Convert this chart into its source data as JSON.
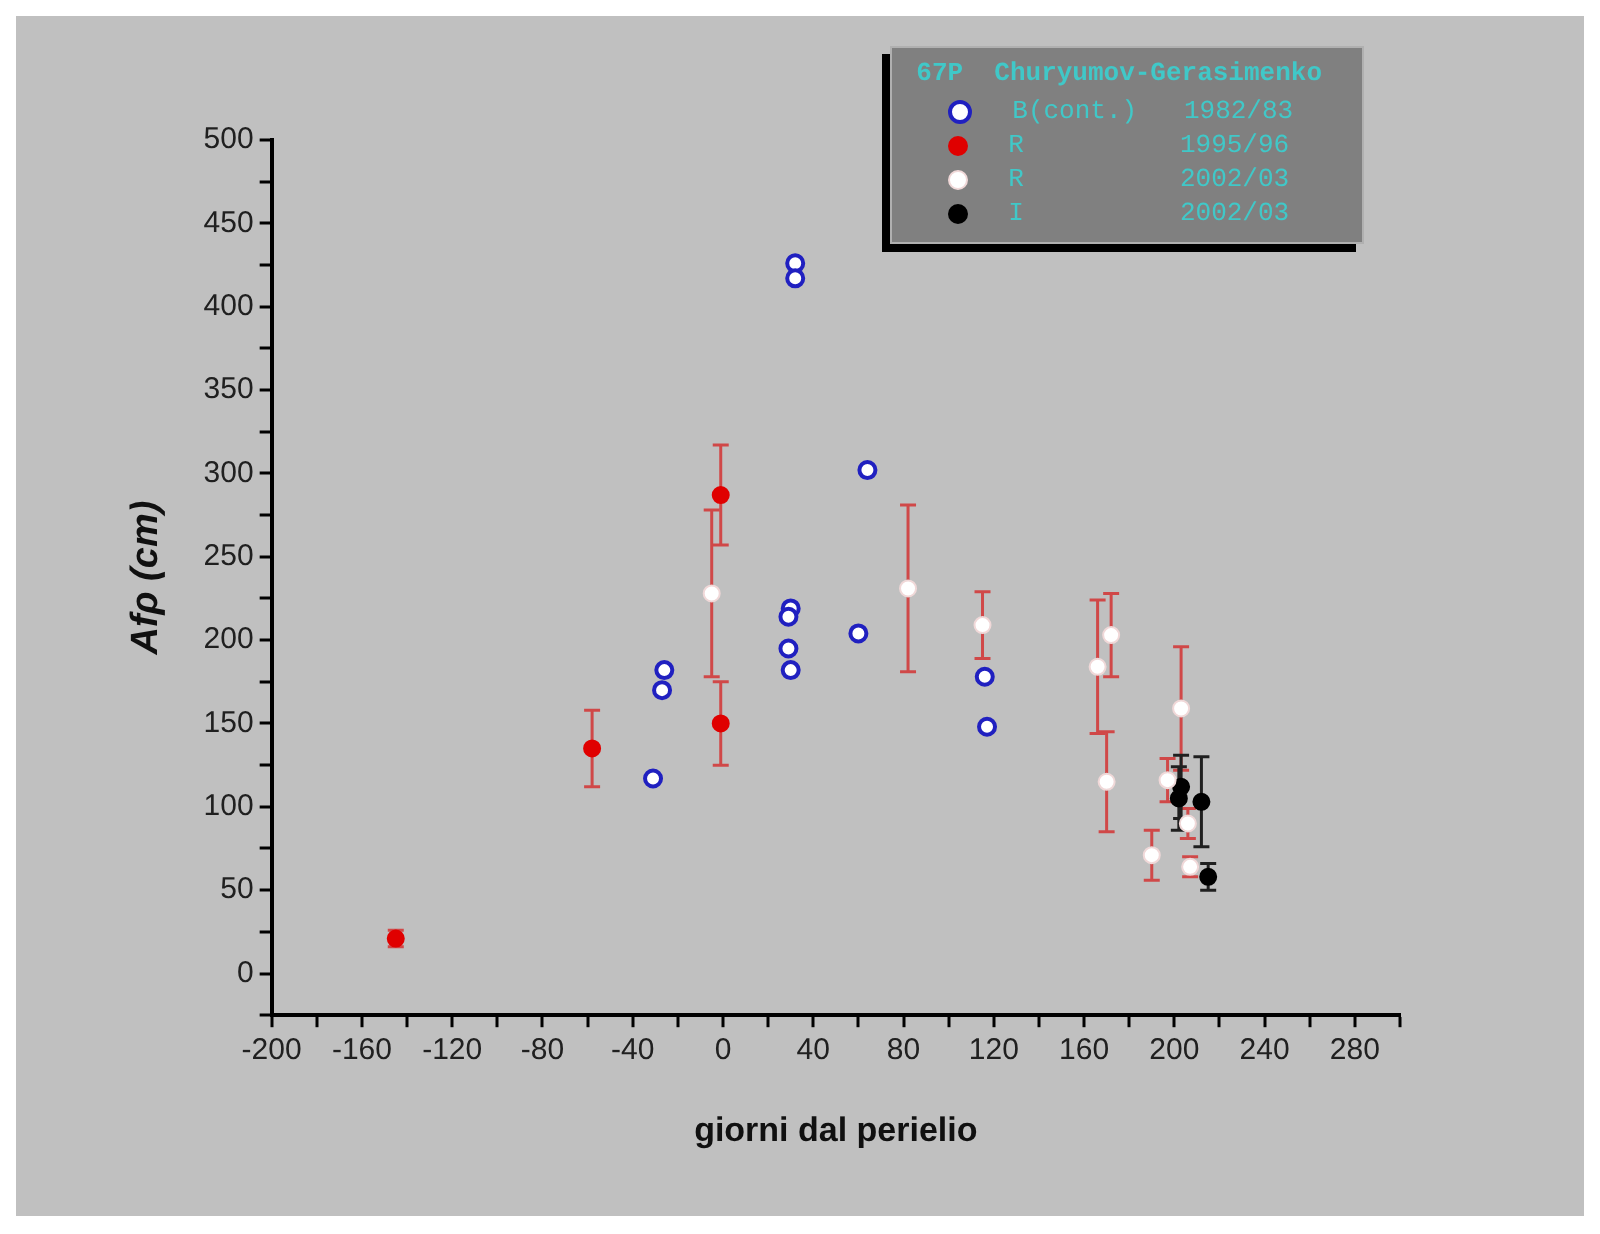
{
  "chart_data": {
    "type": "scatter",
    "xlabel": "giorni dal perielio",
    "ylabel": "Afρ (cm)",
    "legend_title": "67P  Churyumov-Gerasimenko",
    "legend": "top right",
    "grid": false,
    "marker": "circle",
    "xlim": [
      -200,
      300
    ],
    "xticks": [
      -200,
      {
        "value": -180,
        "label": null
      },
      -160,
      {
        "value": -140,
        "label": null
      },
      -120,
      {
        "value": -100,
        "label": null
      },
      -80,
      {
        "value": -60,
        "label": null
      },
      -40,
      {
        "value": -20,
        "label": null
      },
      0,
      {
        "value": 20,
        "label": null
      },
      40,
      {
        "value": 60,
        "label": null
      },
      80,
      {
        "value": 100,
        "label": null
      },
      120,
      {
        "value": 140,
        "label": null
      },
      160,
      {
        "value": 180,
        "label": null
      },
      200,
      {
        "value": 220,
        "label": null
      },
      240,
      {
        "value": 260,
        "label": null
      },
      280,
      {
        "value": 300,
        "label": null
      }
    ],
    "ylim": [
      -25,
      500
    ],
    "yticks": [
      {
        "value": -25,
        "label": null
      },
      0,
      {
        "value": 25,
        "label": null
      },
      50,
      {
        "value": 75,
        "label": null
      },
      100,
      {
        "value": 125,
        "label": null
      },
      150,
      {
        "value": 175,
        "label": null
      },
      200,
      {
        "value": 225,
        "label": null
      },
      250,
      {
        "value": 275,
        "label": null
      },
      300,
      {
        "value": 325,
        "label": null
      },
      350,
      {
        "value": 375,
        "label": null
      },
      400,
      {
        "value": 425,
        "label": null
      },
      450,
      {
        "value": 475,
        "label": null
      },
      500
    ],
    "series": [
      {
        "name": "B(cont.)   1982/83",
        "color": "#2020c0",
        "marker": "circle-open",
        "x": [
          -31,
          -27,
          -26,
          32,
          32,
          30,
          29,
          29,
          30,
          60,
          64,
          116,
          117
        ],
        "values": [
          117,
          170,
          182,
          426,
          417,
          219,
          214,
          195,
          182,
          204,
          302,
          178,
          148
        ]
      },
      {
        "name": "R          1995/96",
        "color": "#e00000",
        "x": [
          -145,
          -58,
          -1,
          -1
        ],
        "values": [
          21,
          135,
          287,
          150
        ],
        "errors": [
          5,
          23,
          30,
          25
        ]
      },
      {
        "name": "R          2002/03",
        "color": "#ffffff",
        "x": [
          -5,
          82,
          115,
          166,
          172,
          170,
          203,
          197,
          190,
          206,
          207
        ],
        "values": [
          228,
          231,
          209,
          184,
          203,
          115,
          159,
          116,
          71,
          90,
          64
        ],
        "errors": [
          50,
          50,
          20,
          40,
          25,
          30,
          37,
          13,
          15,
          9,
          6
        ]
      },
      {
        "name": "I          2002/03",
        "color": "#000000",
        "x": [
          203,
          202,
          212,
          215
        ],
        "values": [
          112,
          105,
          103,
          58
        ],
        "errors": [
          19,
          19,
          27,
          8
        ]
      }
    ]
  }
}
